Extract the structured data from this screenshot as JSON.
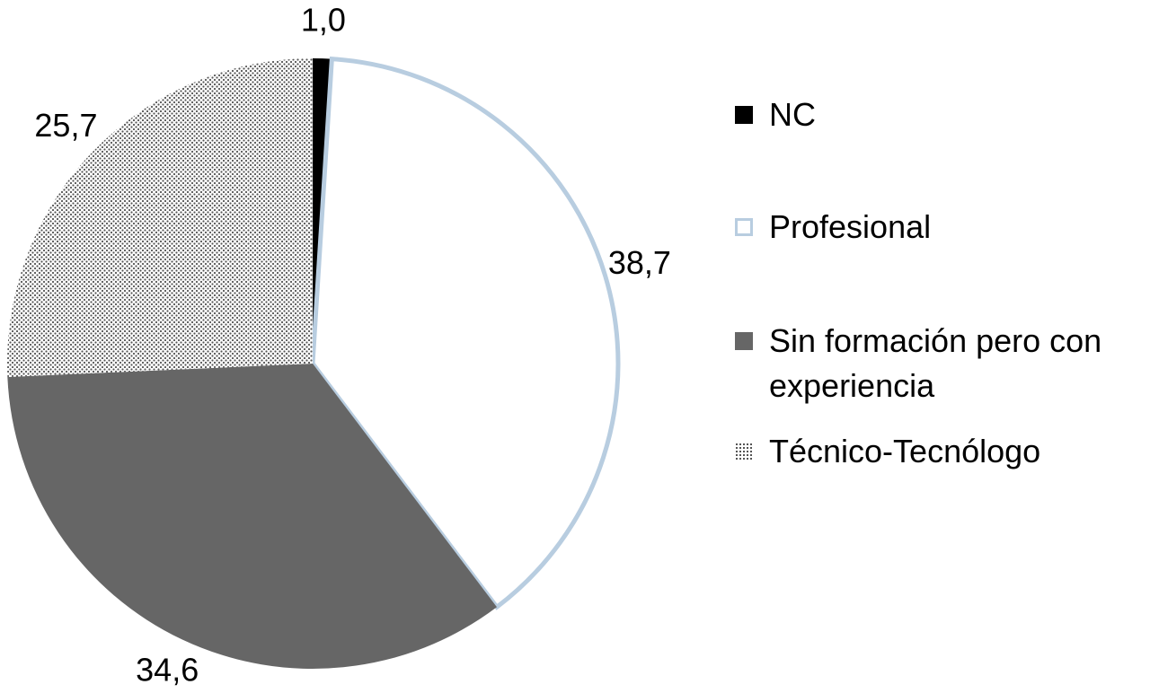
{
  "chart_data": {
    "type": "pie",
    "categories": [
      "NC",
      "Profesional",
      "Sin formación pero con experiencia",
      "Técnico-Tecnólogo"
    ],
    "values": [
      1.0,
      38.7,
      34.6,
      25.7
    ],
    "value_labels": [
      "1,0",
      "38,7",
      "34,6",
      "25,7"
    ],
    "colors": [
      "#000000",
      "#ffffff",
      "#666666",
      "#9a9a9a"
    ],
    "fill_styles": [
      "solid",
      "solid",
      "solid",
      "dotted"
    ],
    "legend": "right"
  }
}
